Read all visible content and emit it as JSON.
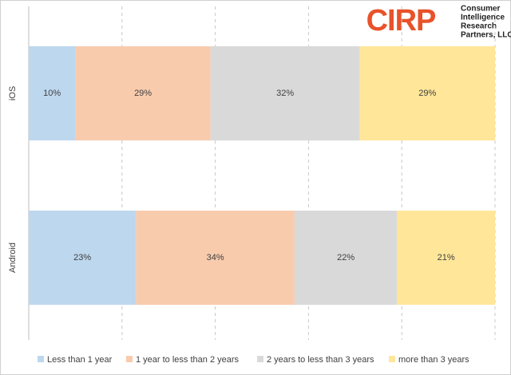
{
  "chart_data": {
    "type": "stacked-barh",
    "logo": "CIRP",
    "logo_lines": [
      "Consumer",
      "Intelligence",
      "Research",
      "Partners, LLC"
    ],
    "categories": [
      "iOS",
      "Android"
    ],
    "series": [
      {
        "name": "Less than 1 year",
        "color": "#bdd7ee",
        "values": [
          10,
          23
        ],
        "value_labels": [
          "10%",
          "23%"
        ]
      },
      {
        "name": "1 year to less than 2 years",
        "color": "#f8cbad",
        "values": [
          29,
          34
        ],
        "value_labels": [
          "29%",
          "34%"
        ]
      },
      {
        "name": "2 years to less than 3 years",
        "color": "#d9d9d9",
        "values": [
          32,
          22
        ],
        "value_labels": [
          "32%",
          "22%"
        ]
      },
      {
        "name": "more than 3 years",
        "color": "#ffe699",
        "values": [
          29,
          21
        ],
        "value_labels": [
          "29%",
          "21%"
        ]
      }
    ],
    "xlim": [
      0,
      100
    ],
    "xticks": [
      0,
      20,
      40,
      60,
      80,
      100
    ],
    "grid": true,
    "legend": "bottom"
  }
}
